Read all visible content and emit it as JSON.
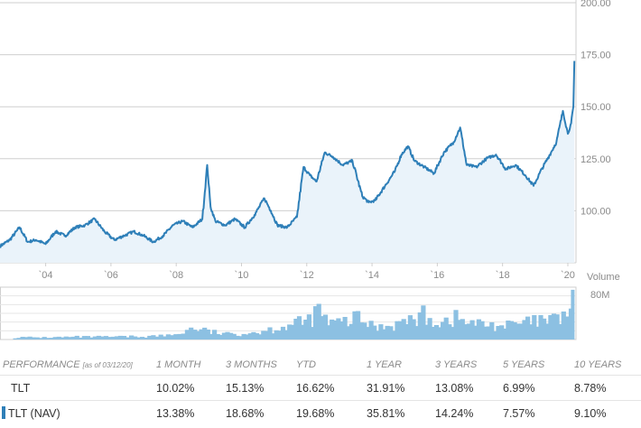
{
  "chart_data": {
    "type": "line",
    "ticker": "TLT",
    "y_ticks": [
      "200.00",
      "175.00",
      "150.00",
      "125.00",
      "100.00"
    ],
    "ylim": [
      75,
      200
    ],
    "x_ticks": [
      "`04",
      "`06",
      "`08",
      "`10",
      "`12",
      "`14",
      "`16",
      "`18",
      "`20"
    ],
    "xlim": [
      2002.6,
      2020.25
    ],
    "series": [
      {
        "x": [
          2002.6,
          2002.9,
          2003.2,
          2003.45,
          2003.7,
          2004.0,
          2004.3,
          2004.6,
          2004.9,
          2005.2,
          2005.5,
          2005.8,
          2006.1,
          2006.4,
          2006.7,
          2007.0,
          2007.3,
          2007.6,
          2007.9,
          2008.2,
          2008.5,
          2008.8,
          2008.95,
          2009.05,
          2009.2,
          2009.5,
          2009.8,
          2010.1,
          2010.4,
          2010.7,
          2010.9,
          2011.1,
          2011.4,
          2011.7,
          2011.9,
          2012.1,
          2012.3,
          2012.55,
          2012.8,
          2013.1,
          2013.4,
          2013.7,
          2013.9,
          2014.1,
          2014.4,
          2014.7,
          2014.9,
          2015.1,
          2015.3,
          2015.6,
          2015.9,
          2016.2,
          2016.5,
          2016.7,
          2016.9,
          2017.2,
          2017.5,
          2017.8,
          2018.1,
          2018.4,
          2018.7,
          2018.95,
          2019.2,
          2019.45,
          2019.65,
          2019.85,
          2020.0,
          2020.1,
          2020.17,
          2020.2
        ],
        "values": [
          83,
          86,
          92,
          85,
          86,
          84,
          90,
          88,
          92,
          93,
          96,
          90,
          86,
          88,
          90,
          88,
          85,
          88,
          93,
          95,
          92,
          96,
          122,
          102,
          95,
          93,
          96,
          92,
          98,
          106,
          100,
          93,
          92,
          97,
          121,
          117,
          114,
          128,
          126,
          122,
          124,
          107,
          104,
          105,
          112,
          119,
          127,
          131,
          124,
          121,
          118,
          128,
          133,
          140,
          122,
          121,
          125,
          127,
          120,
          122,
          117,
          112,
          120,
          127,
          133,
          148,
          137,
          142,
          150,
          172
        ]
      }
    ],
    "volume": {
      "label": "Volume",
      "tick": "80M",
      "max_millions": 100,
      "x": [
        2003.0,
        2004.0,
        2005.0,
        2006.0,
        2007.0,
        2007.8,
        2008.5,
        2009.0,
        2009.5,
        2010.0,
        2010.5,
        2011.0,
        2011.5,
        2012.0,
        2012.3,
        2012.6,
        2013.0,
        2013.5,
        2014.0,
        2014.5,
        2015.0,
        2015.5,
        2016.0,
        2016.5,
        2017.0,
        2017.5,
        2018.0,
        2018.5,
        2019.0,
        2019.5,
        2019.9,
        2020.15
      ],
      "values": [
        4,
        4,
        5,
        5,
        6,
        8,
        22,
        14,
        10,
        12,
        15,
        22,
        28,
        36,
        55,
        30,
        32,
        40,
        24,
        28,
        34,
        45,
        33,
        40,
        30,
        28,
        26,
        30,
        34,
        36,
        48,
        95
      ]
    }
  },
  "performance": {
    "header": {
      "label": "PERFORMANCE",
      "asof": "[as of 03/12/20]",
      "cols": [
        "1 MONTH",
        "3 MONTHS",
        "YTD",
        "1 YEAR",
        "3 YEARS",
        "5 YEARS",
        "10 YEARS"
      ]
    },
    "rows": [
      {
        "name": "TLT",
        "values": [
          "10.02%",
          "15.13%",
          "16.62%",
          "31.91%",
          "13.08%",
          "6.99%",
          "8.78%"
        ]
      },
      {
        "name": "TLT (NAV)",
        "values": [
          "13.38%",
          "18.68%",
          "19.68%",
          "35.81%",
          "14.24%",
          "7.57%",
          "9.10%"
        ]
      }
    ]
  },
  "colors": {
    "line": "#2e7fb8",
    "fill": "#eaf3fa",
    "volume": "#8cc0e2",
    "grid": "#cfcfcf"
  }
}
